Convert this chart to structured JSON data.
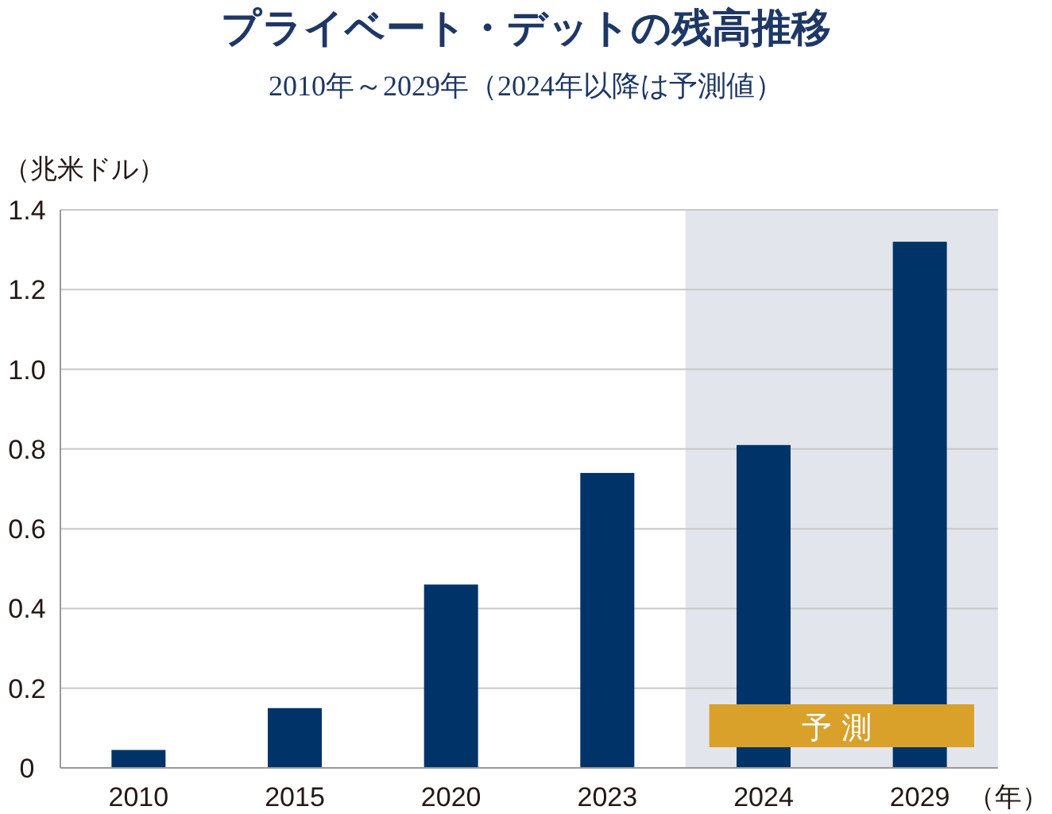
{
  "chart_data": {
    "type": "bar",
    "title": "プライベート・デットの残高推移",
    "subtitle": "2010年～2029年（2024年以降は予測値）",
    "ylabel": "（兆米ドル）",
    "xlabel": "（年）",
    "categories": [
      "2010",
      "2015",
      "2020",
      "2023",
      "2024",
      "2029"
    ],
    "values": [
      0.045,
      0.15,
      0.46,
      0.74,
      0.81,
      1.32
    ],
    "color": "#003469",
    "ylim": [
      0,
      1.4
    ],
    "yticks": [
      0,
      0.2,
      0.4,
      0.6,
      0.8,
      {
        "value": 1,
        "label": "1.0"
      },
      1.2,
      1.4
    ],
    "grid": "y",
    "bands": [
      {
        "axis": "x",
        "from": "2024",
        "to": "2029",
        "label": "予測",
        "color": "#e3e5ec"
      }
    ]
  }
}
